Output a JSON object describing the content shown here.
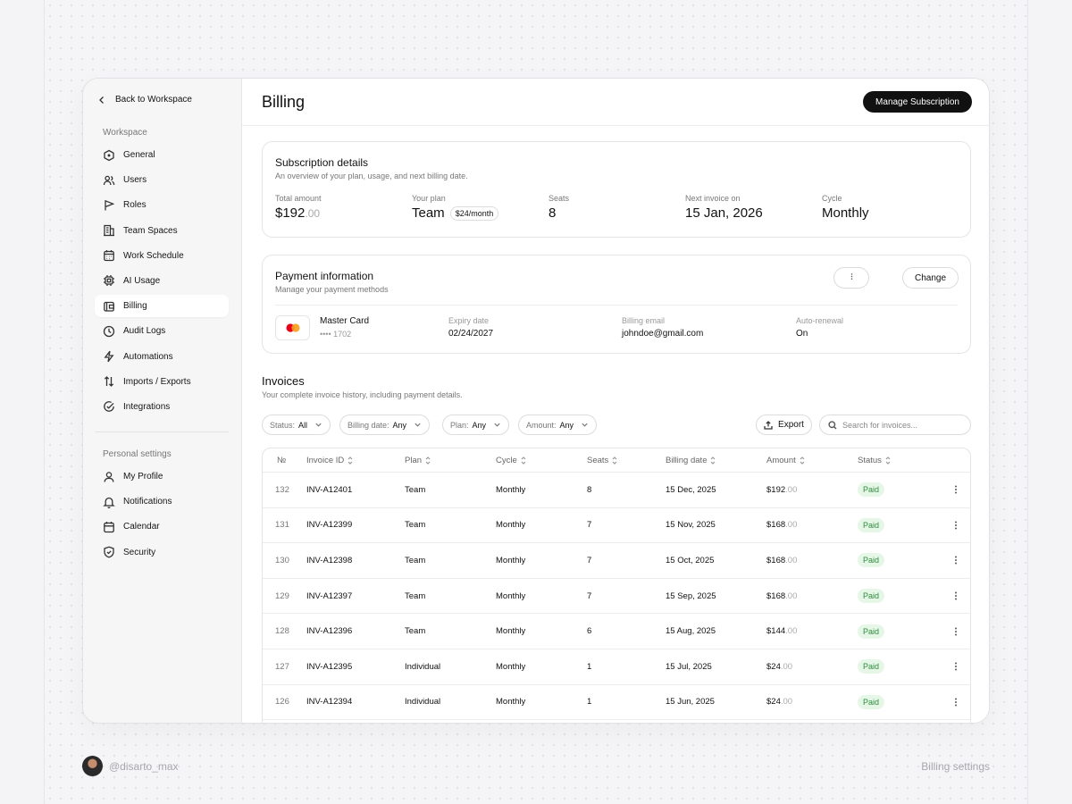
{
  "sidebar": {
    "back_label": "Back to Workspace",
    "workspace_label": "Workspace",
    "workspace_items": [
      {
        "label": "General",
        "icon": "hexagon-icon"
      },
      {
        "label": "Users",
        "icon": "users-icon"
      },
      {
        "label": "Roles",
        "icon": "flag-icon"
      },
      {
        "label": "Team Spaces",
        "icon": "building-icon"
      },
      {
        "label": "Work Schedule",
        "icon": "calendar-grid-icon"
      },
      {
        "label": "AI Usage",
        "icon": "chip-icon"
      },
      {
        "label": "Billing",
        "icon": "wallet-icon",
        "active": true
      },
      {
        "label": "Audit Logs",
        "icon": "clock-icon"
      },
      {
        "label": "Automations",
        "icon": "bolt-icon"
      },
      {
        "label": "Imports / Exports",
        "icon": "arrows-updown-icon"
      },
      {
        "label": "Integrations",
        "icon": "check-circle-icon"
      }
    ],
    "personal_label": "Personal settings",
    "personal_items": [
      {
        "label": "My Profile",
        "icon": "user-icon"
      },
      {
        "label": "Notifications",
        "icon": "bell-icon"
      },
      {
        "label": "Calendar",
        "icon": "calendar-icon"
      },
      {
        "label": "Security",
        "icon": "shield-icon"
      }
    ]
  },
  "header": {
    "title": "Billing",
    "manage_label": "Manage Subscription"
  },
  "subscription": {
    "title": "Subscription details",
    "subtitle": "An overview of your plan, usage, and next billing date.",
    "total_label": "Total amount",
    "total_value": "$192",
    "total_decimal": ".00",
    "plan_label": "Your plan",
    "plan_value": "Team",
    "plan_price": "$24/month",
    "seats_label": "Seats",
    "seats_value": "8",
    "next_label": "Next invoice on",
    "next_value": "15 Jan, 2026",
    "cycle_label": "Cycle",
    "cycle_value": "Monthly"
  },
  "payment": {
    "title": "Payment information",
    "subtitle": "Manage your payment methods",
    "more_icon": "more-vertical-icon",
    "change_label": "Change",
    "card_name": "Master Card",
    "card_number": "•••• 1702",
    "expiry_label": "Expiry date",
    "expiry_value": "02/24/2027",
    "email_label": "Billing email",
    "email_value": "johndoe@gmail.com",
    "renewal_label": "Auto-renewal",
    "renewal_value": "On",
    "brand_colors": {
      "left": "#eb001b",
      "right": "#f79e1b"
    }
  },
  "invoices": {
    "title": "Invoices",
    "subtitle": "Your complete invoice history, including payment details.",
    "filters": [
      {
        "label": "Status:",
        "value": "All"
      },
      {
        "label": "Billing date:",
        "value": "Any"
      },
      {
        "label": "Plan:",
        "value": "Any"
      },
      {
        "label": "Amount:",
        "value": "Any"
      }
    ],
    "export_label": "Export",
    "search_placeholder": "Search for invoices...",
    "columns": [
      "№",
      "Invoice ID",
      "Plan",
      "Cycle",
      "Seats",
      "Billing date",
      "Amount",
      "Status"
    ],
    "rows": [
      {
        "no": "132",
        "id": "INV-A12401",
        "plan": "Team",
        "cycle": "Monthly",
        "seats": "8",
        "date": "15 Dec, 2025",
        "amount": "$192",
        "dec": ".00",
        "status": "Paid"
      },
      {
        "no": "131",
        "id": "INV-A12399",
        "plan": "Team",
        "cycle": "Monthly",
        "seats": "7",
        "date": "15 Nov, 2025",
        "amount": "$168",
        "dec": ".00",
        "status": "Paid"
      },
      {
        "no": "130",
        "id": "INV-A12398",
        "plan": "Team",
        "cycle": "Monthly",
        "seats": "7",
        "date": "15 Oct, 2025",
        "amount": "$168",
        "dec": ".00",
        "status": "Paid"
      },
      {
        "no": "129",
        "id": "INV-A12397",
        "plan": "Team",
        "cycle": "Monthly",
        "seats": "7",
        "date": "15 Sep, 2025",
        "amount": "$168",
        "dec": ".00",
        "status": "Paid"
      },
      {
        "no": "128",
        "id": "INV-A12396",
        "plan": "Team",
        "cycle": "Monthly",
        "seats": "6",
        "date": "15 Aug, 2025",
        "amount": "$144",
        "dec": ".00",
        "status": "Paid"
      },
      {
        "no": "127",
        "id": "INV-A12395",
        "plan": "Individual",
        "cycle": "Monthly",
        "seats": "1",
        "date": "15 Jul, 2025",
        "amount": "$24",
        "dec": ".00",
        "status": "Paid"
      },
      {
        "no": "126",
        "id": "INV-A12394",
        "plan": "Individual",
        "cycle": "Monthly",
        "seats": "1",
        "date": "15 Jun, 2025",
        "amount": "$24",
        "dec": ".00",
        "status": "Paid"
      }
    ],
    "status_colors": {
      "paid_bg": "#e6f7e8",
      "paid_fg": "#2e8b3d"
    }
  },
  "footer": {
    "handle": "@disarto_max",
    "caption": "Billing settings"
  }
}
